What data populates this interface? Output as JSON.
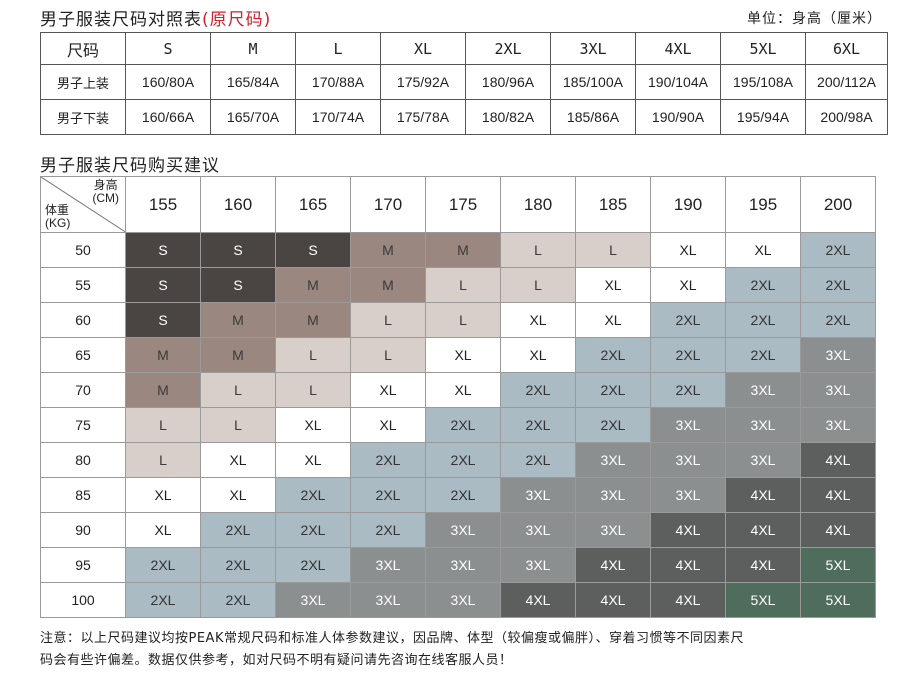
{
  "top": {
    "title": "男子服装尺码对照表",
    "title_suffix": "(原尺码)",
    "unit": "单位：身高（厘米）"
  },
  "size_table": {
    "header_label": "尺码",
    "sizes": [
      "S",
      "M",
      "L",
      "XL",
      "2XL",
      "3XL",
      "4XL",
      "5XL",
      "6XL"
    ],
    "rows": [
      {
        "label": "男子上装",
        "values": [
          "160/80A",
          "165/84A",
          "170/88A",
          "175/92A",
          "180/96A",
          "185/100A",
          "190/104A",
          "195/108A",
          "200/112A"
        ]
      },
      {
        "label": "男子下装",
        "values": [
          "160/66A",
          "165/70A",
          "170/74A",
          "175/78A",
          "180/82A",
          "185/86A",
          "190/90A",
          "195/94A",
          "200/98A"
        ]
      }
    ]
  },
  "buy_table": {
    "title": "男子服装尺码购买建议",
    "corner_height_line1": "身高",
    "corner_height_line2": "(CM)",
    "corner_weight_line1": "体重",
    "corner_weight_line2": "(KG)",
    "heights": [
      "155",
      "160",
      "165",
      "170",
      "175",
      "180",
      "185",
      "190",
      "195",
      "200"
    ],
    "rows": [
      {
        "weight": "50",
        "sizes": [
          "S",
          "S",
          "S",
          "M",
          "M",
          "L",
          "L",
          "XL",
          "XL",
          "2XL"
        ]
      },
      {
        "weight": "55",
        "sizes": [
          "S",
          "S",
          "M",
          "M",
          "L",
          "L",
          "XL",
          "XL",
          "2XL",
          "2XL"
        ]
      },
      {
        "weight": "60",
        "sizes": [
          "S",
          "M",
          "M",
          "L",
          "L",
          "XL",
          "XL",
          "2XL",
          "2XL",
          "2XL"
        ]
      },
      {
        "weight": "65",
        "sizes": [
          "M",
          "M",
          "L",
          "L",
          "XL",
          "XL",
          "2XL",
          "2XL",
          "2XL",
          "3XL"
        ]
      },
      {
        "weight": "70",
        "sizes": [
          "M",
          "L",
          "L",
          "XL",
          "XL",
          "2XL",
          "2XL",
          "2XL",
          "3XL",
          "3XL"
        ]
      },
      {
        "weight": "75",
        "sizes": [
          "L",
          "L",
          "XL",
          "XL",
          "2XL",
          "2XL",
          "2XL",
          "3XL",
          "3XL",
          "3XL"
        ]
      },
      {
        "weight": "80",
        "sizes": [
          "L",
          "XL",
          "XL",
          "2XL",
          "2XL",
          "2XL",
          "3XL",
          "3XL",
          "3XL",
          "4XL"
        ]
      },
      {
        "weight": "85",
        "sizes": [
          "XL",
          "XL",
          "2XL",
          "2XL",
          "2XL",
          "3XL",
          "3XL",
          "3XL",
          "4XL",
          "4XL"
        ]
      },
      {
        "weight": "90",
        "sizes": [
          "XL",
          "2XL",
          "2XL",
          "2XL",
          "3XL",
          "3XL",
          "3XL",
          "4XL",
          "4XL",
          "4XL"
        ]
      },
      {
        "weight": "95",
        "sizes": [
          "2XL",
          "2XL",
          "2XL",
          "3XL",
          "3XL",
          "3XL",
          "4XL",
          "4XL",
          "4XL",
          "5XL"
        ]
      },
      {
        "weight": "100",
        "sizes": [
          "2XL",
          "2XL",
          "3XL",
          "3XL",
          "3XL",
          "4XL",
          "4XL",
          "4XL",
          "5XL",
          "5XL"
        ]
      }
    ],
    "colors": {
      "S": "#4a4443",
      "M": "#9a8780",
      "L": "#d8ceca",
      "XL": "#ffffff",
      "2XL": "#aabbc4",
      "3XL": "#8b8f90",
      "4XL": "#5d5f5f",
      "5XL": "#4f6d5d"
    }
  },
  "note": {
    "line1": "注意：以上尺码建议均按PEAK常规尺码和标准人体参数建议，因品牌、体型（较偏瘦或偏胖）、穿着习惯等不同因素尺",
    "line2": "码会有些许偏差。数据仅供参考，如对尺码不明有疑问请先咨询在线客服人员！"
  }
}
